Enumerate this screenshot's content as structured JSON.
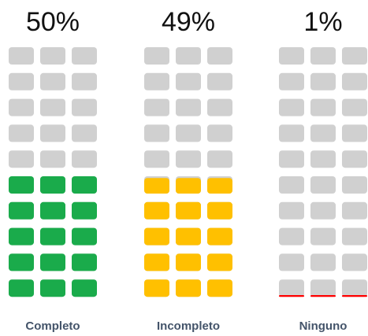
{
  "chart_data": {
    "type": "waffle",
    "categories": [
      "Completo",
      "Incompleto",
      "Ninguno"
    ],
    "values": [
      50,
      49,
      1
    ],
    "value_labels": [
      "50%",
      "49%",
      "1%"
    ],
    "colors": [
      "#1aab4b",
      "#ffc000",
      "#ff0000"
    ],
    "empty_color": "#d0d0d0"
  }
}
